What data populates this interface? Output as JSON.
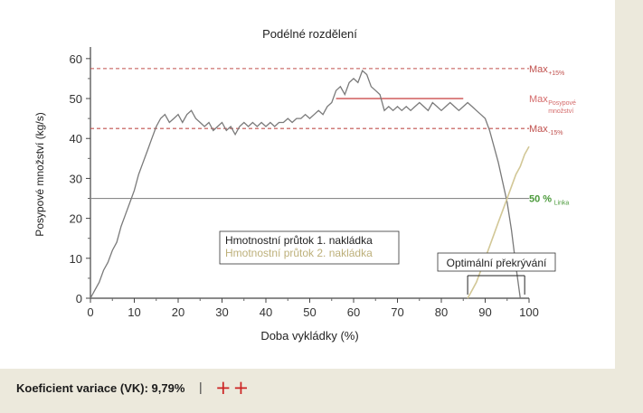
{
  "chart_data": {
    "type": "line",
    "title": "Podélné rozdělení",
    "xlabel": "Doba vykládky (%)",
    "ylabel": "Posypové množství (kg/s)",
    "xlim": [
      0,
      100
    ],
    "ylim": [
      0,
      62
    ],
    "xticks": [
      0,
      10,
      20,
      30,
      40,
      50,
      60,
      70,
      80,
      90,
      100
    ],
    "yticks": [
      0,
      10,
      20,
      30,
      40,
      50,
      60
    ],
    "grid": false,
    "legend_position": "center-left",
    "series": [
      {
        "name": "Hmotnostní průtok 1. nakládka",
        "color": "#7a7a7a",
        "x": [
          0,
          1,
          2,
          3,
          4,
          5,
          6,
          7,
          8,
          9,
          10,
          11,
          12,
          13,
          14,
          15,
          16,
          17,
          18,
          19,
          20,
          21,
          22,
          23,
          24,
          25,
          26,
          27,
          28,
          29,
          30,
          31,
          32,
          33,
          34,
          35,
          36,
          37,
          38,
          39,
          40,
          41,
          42,
          43,
          44,
          45,
          46,
          47,
          48,
          49,
          50,
          51,
          52,
          53,
          54,
          55,
          56,
          57,
          58,
          59,
          60,
          61,
          62,
          63,
          64,
          65,
          66,
          67,
          68,
          69,
          70,
          71,
          72,
          73,
          74,
          75,
          76,
          77,
          78,
          79,
          80,
          81,
          82,
          83,
          84,
          85,
          86,
          87,
          88,
          89,
          90,
          91,
          92,
          93,
          94,
          95,
          96,
          97,
          98
        ],
        "y": [
          0,
          2,
          4,
          7,
          9,
          12,
          14,
          18,
          21,
          24,
          27,
          31,
          34,
          37,
          40,
          43,
          45,
          46,
          44,
          45,
          46,
          44,
          46,
          47,
          45,
          44,
          43,
          44,
          42,
          43,
          44,
          42,
          43,
          41,
          43,
          44,
          43,
          44,
          43,
          44,
          43,
          44,
          43,
          44,
          44,
          45,
          44,
          45,
          45,
          46,
          45,
          46,
          47,
          46,
          48,
          49,
          52,
          53,
          51,
          54,
          55,
          54,
          57,
          56,
          53,
          52,
          51,
          47,
          48,
          47,
          48,
          47,
          48,
          47,
          48,
          49,
          48,
          47,
          49,
          48,
          47,
          48,
          49,
          48,
          47,
          48,
          49,
          48,
          47,
          46,
          45,
          42,
          38,
          34,
          29,
          24,
          17,
          8,
          0
        ]
      },
      {
        "name": "Hmotnostní průtok 2. nakládka",
        "color": "#d2c796",
        "x": [
          86,
          87,
          88,
          89,
          90,
          91,
          92,
          93,
          94,
          95,
          96,
          97,
          98,
          99,
          100
        ],
        "y": [
          0,
          2,
          4,
          7,
          10,
          13,
          16,
          19,
          22,
          25,
          28,
          31,
          33,
          36,
          38
        ]
      }
    ],
    "reference_lines": [
      {
        "label": "Max",
        "sub": "+15%",
        "y": 57.5,
        "style": "dashed",
        "color": "#c0504d"
      },
      {
        "label": "Max",
        "sub": "Posypové\nmnožství",
        "y": 50,
        "style": "solid",
        "color": "#d46a6a",
        "x_range": [
          56,
          85
        ]
      },
      {
        "label": "Max",
        "sub": "-15%",
        "y": 42.5,
        "style": "dashed",
        "color": "#c0504d"
      },
      {
        "label": "50 %",
        "sub": "Linka",
        "y": 25,
        "style": "solid",
        "color": "#8a8a8a",
        "label_color": "#4c9a3c"
      }
    ],
    "annotation": {
      "label": "Optimální překrývání",
      "x_range": [
        86,
        99
      ]
    }
  },
  "footer": {
    "caption": "Koeficient variace (VK): 9,79%",
    "separator": "|",
    "rating": "++"
  }
}
